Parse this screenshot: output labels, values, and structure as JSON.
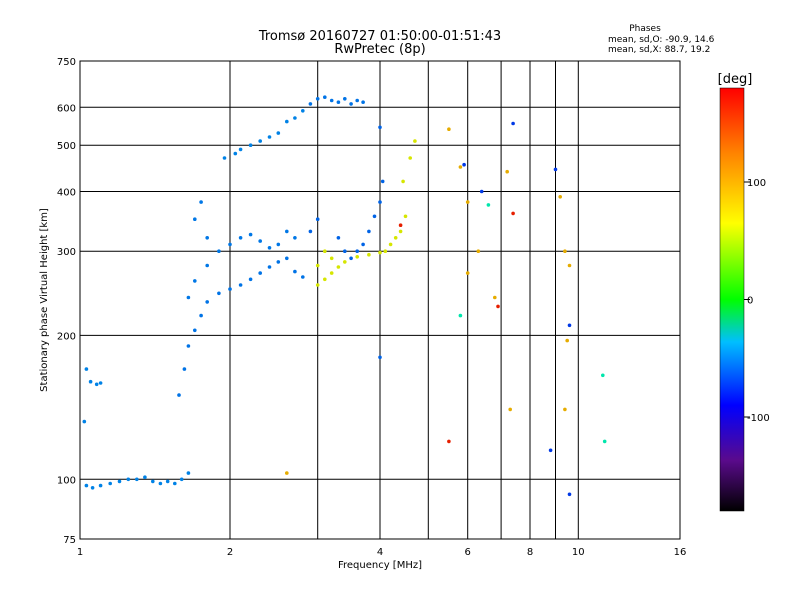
{
  "title": "Tromsø 20160727 01:50:00-01:51:43",
  "subtitle": "RwPretec (8p)",
  "stats": {
    "heading": "Phases",
    "line1": "mean, sd,O: -90.9, 14.6",
    "line2": "mean, sd,X:  88.7, 19.2"
  },
  "chart_data": {
    "type": "scatter",
    "xlabel": "Frequency [MHz]",
    "ylabel": "Stationary phase Virtual Height [km]",
    "x_scale": "log",
    "y_scale": "log",
    "xlim": [
      1,
      16
    ],
    "ylim": [
      75,
      750
    ],
    "x_ticks": [
      1,
      2,
      4,
      6,
      8,
      10,
      16
    ],
    "x_tick_labels": [
      "1",
      "2",
      "4",
      "6",
      "8",
      "10",
      "16"
    ],
    "x_grid": [
      2,
      3,
      4,
      5,
      6,
      7,
      8,
      9,
      10
    ],
    "y_ticks": [
      75,
      100,
      200,
      300,
      400,
      500,
      600,
      750
    ],
    "y_tick_labels": [
      "75",
      "100",
      "200",
      "300",
      "400",
      "500",
      "600",
      "750"
    ],
    "grid": true,
    "colorbar": {
      "label": "[deg]",
      "min": -180,
      "max": 180,
      "ticks": [
        100,
        0,
        -100
      ],
      "tick_labels": [
        "100",
        "0",
        "-100"
      ]
    },
    "clusters": [
      {
        "phase": -95,
        "points": [
          [
            1.03,
            97
          ],
          [
            1.06,
            96
          ],
          [
            1.1,
            97
          ],
          [
            1.15,
            98
          ],
          [
            1.2,
            99
          ],
          [
            1.25,
            100
          ],
          [
            1.3,
            100
          ],
          [
            1.35,
            101
          ],
          [
            1.4,
            99
          ],
          [
            1.45,
            98
          ],
          [
            1.5,
            99
          ],
          [
            1.55,
            98
          ],
          [
            1.6,
            100
          ],
          [
            1.65,
            103
          ]
        ]
      },
      {
        "phase": -95,
        "points": [
          [
            1.05,
            160
          ],
          [
            1.08,
            158
          ],
          [
            1.1,
            159
          ],
          [
            1.03,
            170
          ],
          [
            1.02,
            132
          ]
        ]
      },
      {
        "phase": -100,
        "points": [
          [
            1.58,
            150
          ],
          [
            1.62,
            170
          ],
          [
            1.65,
            190
          ],
          [
            1.7,
            205
          ],
          [
            1.75,
            220
          ],
          [
            1.8,
            235
          ],
          [
            1.9,
            245
          ],
          [
            2.0,
            250
          ],
          [
            2.1,
            255
          ],
          [
            2.2,
            262
          ],
          [
            2.3,
            270
          ],
          [
            2.4,
            278
          ],
          [
            2.5,
            285
          ],
          [
            2.6,
            290
          ],
          [
            2.7,
            272
          ],
          [
            2.8,
            265
          ]
        ]
      },
      {
        "phase": -98,
        "points": [
          [
            1.65,
            240
          ],
          [
            1.7,
            260
          ],
          [
            1.8,
            280
          ],
          [
            1.9,
            300
          ],
          [
            2.0,
            310
          ],
          [
            2.1,
            320
          ],
          [
            2.2,
            325
          ],
          [
            2.3,
            315
          ],
          [
            2.4,
            305
          ],
          [
            2.5,
            310
          ],
          [
            2.6,
            330
          ],
          [
            2.7,
            320
          ],
          [
            1.7,
            350
          ],
          [
            1.75,
            380
          ],
          [
            1.8,
            320
          ]
        ]
      },
      {
        "phase": -95,
        "points": [
          [
            1.95,
            470
          ],
          [
            2.05,
            480
          ],
          [
            2.1,
            490
          ],
          [
            2.2,
            500
          ],
          [
            2.3,
            510
          ],
          [
            2.4,
            520
          ],
          [
            2.5,
            530
          ],
          [
            2.6,
            560
          ],
          [
            2.7,
            570
          ],
          [
            2.8,
            590
          ]
        ]
      },
      {
        "phase": -100,
        "points": [
          [
            2.9,
            610
          ],
          [
            3.0,
            625
          ],
          [
            3.1,
            630
          ],
          [
            3.2,
            620
          ],
          [
            3.3,
            615
          ],
          [
            3.4,
            625
          ],
          [
            3.5,
            610
          ],
          [
            3.6,
            620
          ],
          [
            3.7,
            615
          ]
        ]
      },
      {
        "phase": 95,
        "points": [
          [
            3.0,
            255
          ],
          [
            3.1,
            262
          ],
          [
            3.2,
            270
          ],
          [
            3.3,
            278
          ],
          [
            3.1,
            300
          ],
          [
            3.2,
            290
          ],
          [
            3.0,
            280
          ],
          [
            3.4,
            285
          ],
          [
            3.6,
            292
          ],
          [
            3.8,
            295
          ],
          [
            4.0,
            298
          ],
          [
            4.1,
            300
          ],
          [
            4.2,
            310
          ],
          [
            4.3,
            320
          ],
          [
            4.4,
            330
          ],
          [
            4.5,
            355
          ],
          [
            4.45,
            420
          ],
          [
            4.6,
            470
          ],
          [
            4.7,
            510
          ]
        ]
      },
      {
        "phase": -105,
        "points": [
          [
            3.3,
            320
          ],
          [
            3.4,
            300
          ],
          [
            3.5,
            290
          ],
          [
            3.6,
            300
          ],
          [
            3.7,
            310
          ],
          [
            3.8,
            330
          ],
          [
            3.9,
            355
          ],
          [
            4.0,
            380
          ],
          [
            4.05,
            420
          ],
          [
            4.0,
            545
          ],
          [
            4.0,
            180
          ],
          [
            3.0,
            350
          ],
          [
            2.9,
            330
          ]
        ]
      },
      {
        "phase": 120,
        "points": [
          [
            5.5,
            540
          ],
          [
            5.8,
            450
          ],
          [
            6.0,
            380
          ],
          [
            6.3,
            300
          ],
          [
            7.2,
            440
          ],
          [
            7.3,
            140
          ],
          [
            9.2,
            390
          ],
          [
            9.4,
            300
          ],
          [
            9.6,
            280
          ],
          [
            9.5,
            195
          ],
          [
            9.4,
            140
          ],
          [
            6.0,
            270
          ],
          [
            6.8,
            240
          ],
          [
            2.6,
            103
          ]
        ]
      },
      {
        "phase": -40,
        "points": [
          [
            6.6,
            375
          ],
          [
            11.2,
            165
          ],
          [
            11.3,
            120
          ],
          [
            5.8,
            220
          ]
        ]
      },
      {
        "phase": -120,
        "points": [
          [
            7.4,
            555
          ],
          [
            9.0,
            445
          ],
          [
            9.6,
            210
          ],
          [
            9.6,
            93
          ],
          [
            8.8,
            115
          ],
          [
            5.9,
            455
          ],
          [
            6.4,
            400
          ]
        ]
      },
      {
        "phase": 170,
        "points": [
          [
            7.4,
            360
          ],
          [
            5.5,
            120
          ],
          [
            6.9,
            230
          ],
          [
            4.4,
            340
          ]
        ]
      }
    ]
  }
}
